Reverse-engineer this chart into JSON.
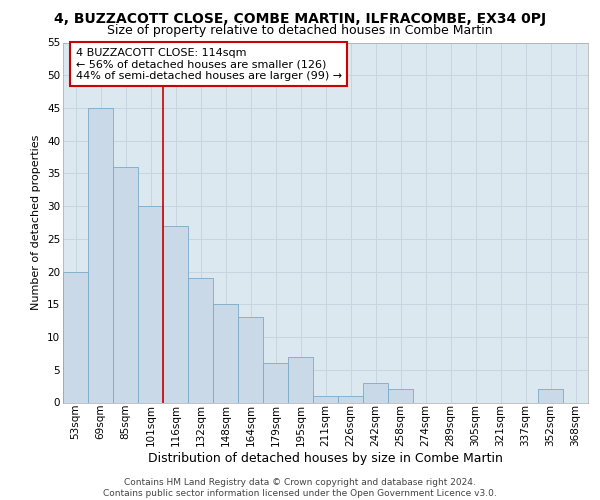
{
  "title1": "4, BUZZACOTT CLOSE, COMBE MARTIN, ILFRACOMBE, EX34 0PJ",
  "title2": "Size of property relative to detached houses in Combe Martin",
  "xlabel": "Distribution of detached houses by size in Combe Martin",
  "ylabel": "Number of detached properties",
  "categories": [
    "53sqm",
    "69sqm",
    "85sqm",
    "101sqm",
    "116sqm",
    "132sqm",
    "148sqm",
    "164sqm",
    "179sqm",
    "195sqm",
    "211sqm",
    "226sqm",
    "242sqm",
    "258sqm",
    "274sqm",
    "289sqm",
    "305sqm",
    "321sqm",
    "337sqm",
    "352sqm",
    "368sqm"
  ],
  "values": [
    20,
    45,
    36,
    30,
    27,
    19,
    15,
    13,
    6,
    7,
    1,
    1,
    3,
    2,
    0,
    0,
    0,
    0,
    0,
    2,
    0
  ],
  "bar_color": "#c9d9e8",
  "bar_edge_color": "#7aaac8",
  "vline_index": 4,
  "vline_color": "#cc0000",
  "annotation_text": "4 BUZZACOTT CLOSE: 114sqm\n← 56% of detached houses are smaller (126)\n44% of semi-detached houses are larger (99) →",
  "annotation_box_facecolor": "#ffffff",
  "annotation_box_edgecolor": "#cc0000",
  "ylim": [
    0,
    55
  ],
  "yticks": [
    0,
    5,
    10,
    15,
    20,
    25,
    30,
    35,
    40,
    45,
    50,
    55
  ],
  "grid_color": "#c8d4e0",
  "background_color": "#dce8f0",
  "footer_text": "Contains HM Land Registry data © Crown copyright and database right 2024.\nContains public sector information licensed under the Open Government Licence v3.0.",
  "title1_fontsize": 10,
  "title2_fontsize": 9,
  "xlabel_fontsize": 9,
  "ylabel_fontsize": 8,
  "tick_fontsize": 7.5,
  "annotation_fontsize": 8,
  "footer_fontsize": 6.5
}
